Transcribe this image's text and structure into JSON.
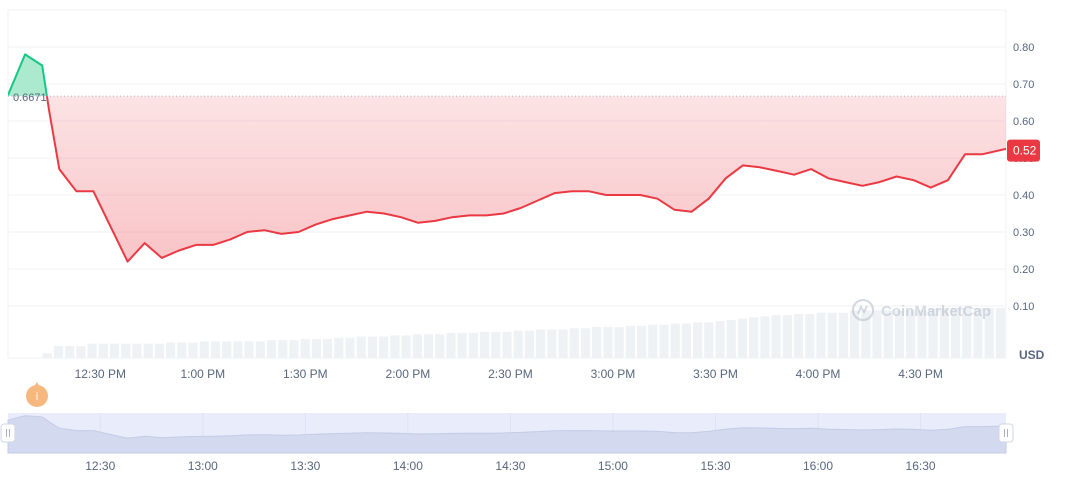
{
  "chart_data": {
    "type": "area",
    "currency": "USD",
    "watermark": "CoinMarketCap",
    "reference": {
      "label": "0.6671",
      "value": 0.6671
    },
    "current": {
      "label": "0.52",
      "value": 0.52
    },
    "ylim": [
      0,
      0.9
    ],
    "y_ticks": [
      "0.10",
      "0.20",
      "0.30",
      "0.40",
      "0.50",
      "0.60",
      "0.70",
      "0.80"
    ],
    "x_tick_labels": [
      "12:30 PM",
      "1:00 PM",
      "1:30 PM",
      "2:00 PM",
      "2:30 PM",
      "3:00 PM",
      "3:30 PM",
      "4:00 PM",
      "4:30 PM"
    ],
    "x_tick_minutes": [
      750,
      780,
      810,
      840,
      870,
      900,
      930,
      960,
      990
    ],
    "x_range_minutes": [
      723,
      1015
    ],
    "price_series": {
      "minutes": [
        723,
        728,
        733,
        735,
        738,
        743,
        748,
        758,
        763,
        768,
        773,
        778,
        783,
        788,
        793,
        798,
        803,
        808,
        813,
        818,
        823,
        828,
        833,
        838,
        843,
        848,
        853,
        858,
        863,
        868,
        873,
        878,
        883,
        888,
        893,
        898,
        903,
        908,
        913,
        918,
        923,
        928,
        933,
        938,
        943,
        948,
        953,
        958,
        963,
        968,
        973,
        978,
        983,
        988,
        993,
        998,
        1003,
        1008,
        1015
      ],
      "values": [
        0.67,
        0.78,
        0.75,
        0.63,
        0.47,
        0.41,
        0.41,
        0.22,
        0.27,
        0.23,
        0.25,
        0.265,
        0.265,
        0.28,
        0.3,
        0.305,
        0.295,
        0.3,
        0.32,
        0.335,
        0.345,
        0.355,
        0.35,
        0.34,
        0.325,
        0.33,
        0.34,
        0.345,
        0.345,
        0.35,
        0.365,
        0.385,
        0.405,
        0.41,
        0.41,
        0.4,
        0.4,
        0.4,
        0.39,
        0.36,
        0.355,
        0.39,
        0.445,
        0.48,
        0.475,
        0.465,
        0.455,
        0.47,
        0.445,
        0.435,
        0.425,
        0.435,
        0.45,
        0.44,
        0.42,
        0.44,
        0.51,
        0.51,
        0.525
      ]
    },
    "volume_relative": [
      0,
      0,
      0,
      0.02,
      0.05,
      0.05,
      0.05,
      0.06,
      0.06,
      0.06,
      0.06,
      0.06,
      0.06,
      0.06,
      0.065,
      0.065,
      0.065,
      0.07,
      0.07,
      0.07,
      0.07,
      0.07,
      0.07,
      0.075,
      0.075,
      0.075,
      0.08,
      0.08,
      0.08,
      0.085,
      0.085,
      0.09,
      0.09,
      0.09,
      0.095,
      0.095,
      0.1,
      0.1,
      0.1,
      0.105,
      0.105,
      0.105,
      0.11,
      0.11,
      0.11,
      0.115,
      0.115,
      0.12,
      0.12,
      0.12,
      0.125,
      0.125,
      0.13,
      0.13,
      0.13,
      0.135,
      0.135,
      0.14,
      0.14,
      0.145,
      0.145,
      0.15,
      0.15,
      0.155,
      0.16,
      0.165,
      0.17,
      0.175,
      0.18,
      0.18,
      0.185,
      0.185,
      0.19,
      0.19,
      0.19,
      0.2,
      0.2,
      0.2,
      0.2,
      0.2,
      0.2,
      0.2,
      0.21,
      0.21,
      0.21,
      0.21,
      0.21,
      0.21,
      0.21
    ],
    "navigator": {
      "tick_labels": [
        "12:30",
        "13:00",
        "13:30",
        "14:00",
        "14:30",
        "15:00",
        "15:30",
        "16:00",
        "16:30"
      ],
      "tick_minutes": [
        750,
        780,
        810,
        840,
        870,
        900,
        930,
        960,
        990
      ]
    },
    "marker_icon": "info-icon",
    "marker_label": "i",
    "colors": {
      "down_line": "#ea3943",
      "up_line": "#16c784",
      "up_fill": "#9de6c7",
      "current_label_bg": "#ea3943",
      "volume": "#eff2f5",
      "navigator_bg": "#e8ecfb",
      "navigator_area": "#d3daef",
      "marker": "#f6b87e"
    }
  }
}
